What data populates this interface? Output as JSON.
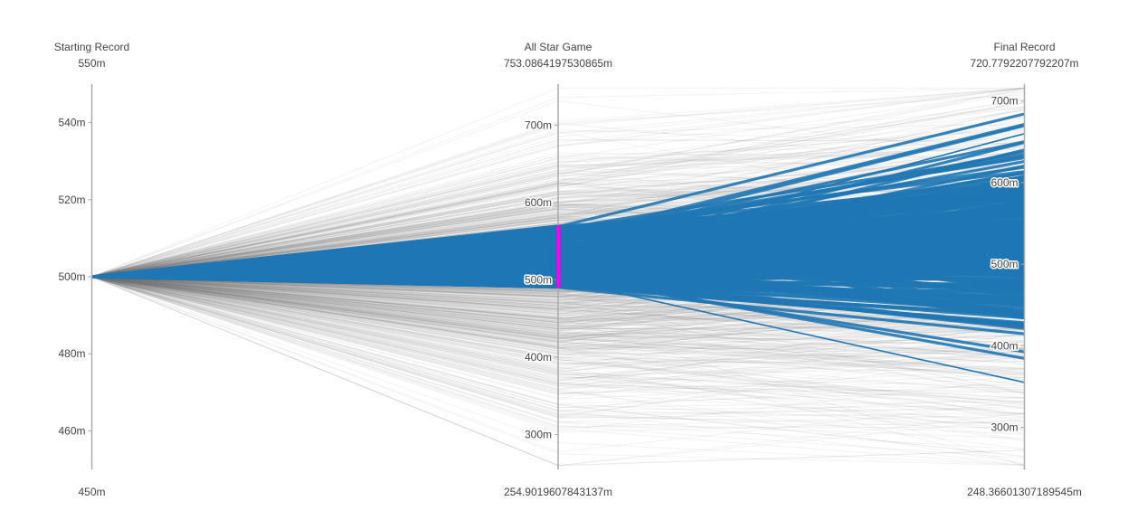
{
  "chart_data": {
    "type": "parallel_coordinates",
    "dimensions": [
      {
        "label": "Starting Record",
        "range_max_label": "550m",
        "range_min_label": "450m",
        "range": [
          0.45,
          0.55
        ],
        "ticks": [
          {
            "value": 0.46,
            "label": "460m"
          },
          {
            "value": 0.48,
            "label": "480m"
          },
          {
            "value": 0.5,
            "label": "500m"
          },
          {
            "value": 0.52,
            "label": "520m"
          },
          {
            "value": 0.54,
            "label": "540m"
          }
        ]
      },
      {
        "label": "All Star Game",
        "range_max_label": "753.0864197530865m",
        "range_min_label": "254.9019607843137m",
        "range": [
          0.2549019607843137,
          0.7530864197530865
        ],
        "constraint_range": [
          0.49,
          0.57
        ],
        "ticks": [
          {
            "value": 0.3,
            "label": "300m"
          },
          {
            "value": 0.4,
            "label": "400m"
          },
          {
            "value": 0.5,
            "label": "500m"
          },
          {
            "value": 0.6,
            "label": "600m"
          },
          {
            "value": 0.7,
            "label": "700m"
          }
        ]
      },
      {
        "label": "Final Record",
        "range_max_label": "720.7792207792207m",
        "range_min_label": "248.36601307189545m",
        "range": [
          0.24836601307189546,
          0.7207792207792207
        ],
        "ticks": [
          {
            "value": 0.3,
            "label": "300m"
          },
          {
            "value": 0.4,
            "label": "400m"
          },
          {
            "value": 0.5,
            "label": "500m"
          },
          {
            "value": 0.6,
            "label": "600m"
          },
          {
            "value": 0.7,
            "label": "700m"
          }
        ]
      }
    ],
    "colors": {
      "selected": "#1f77b4",
      "unselected": "#777777",
      "brush": "#ff00ff",
      "axis": "#aaaaaa",
      "text": "#444444"
    }
  }
}
